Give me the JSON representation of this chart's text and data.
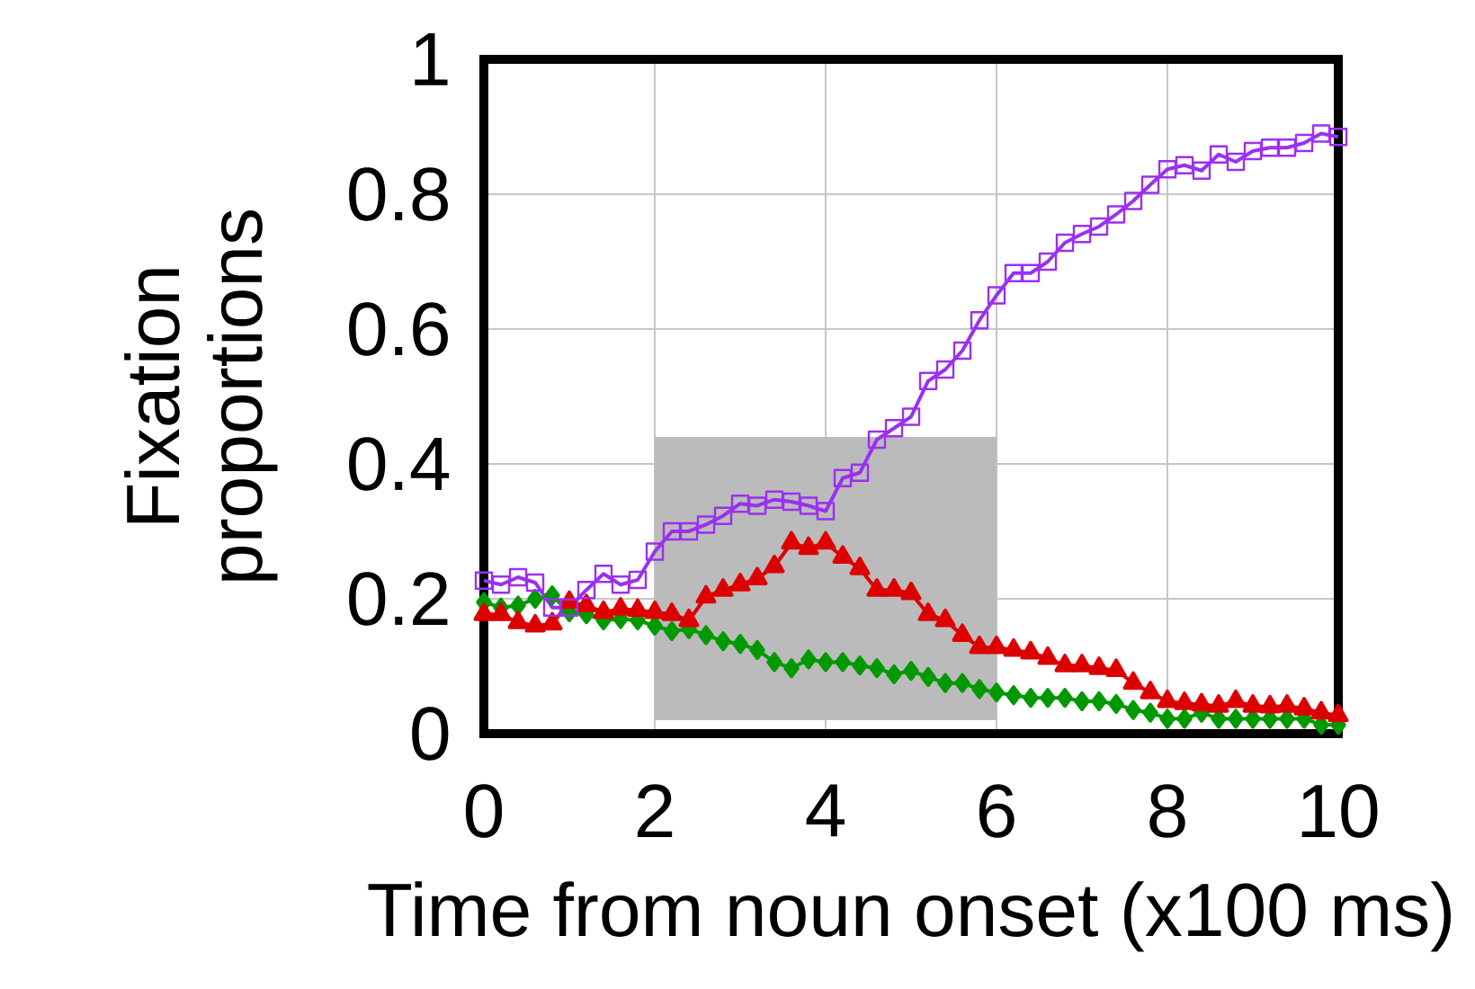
{
  "chart_data": {
    "type": "line",
    "xlabel": "Time from noun onset (x100 ms)",
    "ylabel": "Fixation proportions",
    "x": [
      0,
      0.2,
      0.4,
      0.6,
      0.8,
      1.0,
      1.2,
      1.4,
      1.6,
      1.8,
      2.0,
      2.2,
      2.4,
      2.6,
      2.8,
      3.0,
      3.2,
      3.4,
      3.6,
      3.8,
      4.0,
      4.2,
      4.4,
      4.6,
      4.8,
      5.0,
      5.2,
      5.4,
      5.6,
      5.8,
      6.0,
      6.2,
      6.4,
      6.6,
      6.8,
      7.0,
      7.2,
      7.4,
      7.6,
      7.8,
      8.0,
      8.2,
      8.4,
      8.6,
      8.8,
      9.0,
      9.2,
      9.4,
      9.6,
      9.8,
      10
    ],
    "series": [
      {
        "color": "#9b30f0",
        "marker": "square",
        "values": [
          0.227,
          0.221,
          0.232,
          0.224,
          0.187,
          0.187,
          0.213,
          0.237,
          0.221,
          0.228,
          0.27,
          0.3,
          0.3,
          0.31,
          0.323,
          0.341,
          0.338,
          0.347,
          0.344,
          0.338,
          0.33,
          0.379,
          0.387,
          0.436,
          0.453,
          0.47,
          0.523,
          0.54,
          0.568,
          0.613,
          0.65,
          0.683,
          0.683,
          0.7,
          0.728,
          0.741,
          0.752,
          0.77,
          0.79,
          0.814,
          0.837,
          0.843,
          0.835,
          0.859,
          0.848,
          0.864,
          0.869,
          0.869,
          0.876,
          0.89,
          0.885
        ]
      },
      {
        "color": "#dd0000",
        "marker": "triangle",
        "values": [
          0.177,
          0.177,
          0.165,
          0.16,
          0.163,
          0.195,
          0.19,
          0.18,
          0.185,
          0.183,
          0.18,
          0.177,
          0.168,
          0.203,
          0.213,
          0.221,
          0.23,
          0.248,
          0.283,
          0.275,
          0.283,
          0.262,
          0.245,
          0.213,
          0.213,
          0.208,
          0.177,
          0.168,
          0.146,
          0.128,
          0.128,
          0.124,
          0.12,
          0.112,
          0.101,
          0.101,
          0.097,
          0.094,
          0.075,
          0.061,
          0.048,
          0.045,
          0.043,
          0.041,
          0.048,
          0.041,
          0.04,
          0.041,
          0.037,
          0.031,
          0.027
        ]
      },
      {
        "color": "#009900",
        "marker": "diamond",
        "values": [
          0.195,
          0.187,
          0.19,
          0.2,
          0.205,
          0.18,
          0.177,
          0.168,
          0.17,
          0.168,
          0.16,
          0.152,
          0.155,
          0.146,
          0.137,
          0.133,
          0.124,
          0.106,
          0.097,
          0.11,
          0.106,
          0.106,
          0.101,
          0.097,
          0.088,
          0.093,
          0.084,
          0.075,
          0.075,
          0.066,
          0.061,
          0.057,
          0.053,
          0.053,
          0.053,
          0.048,
          0.048,
          0.044,
          0.035,
          0.031,
          0.022,
          0.022,
          0.031,
          0.022,
          0.022,
          0.022,
          0.022,
          0.022,
          0.022,
          0.013,
          0.013
        ]
      }
    ],
    "xlim": [
      0,
      10
    ],
    "ylim": [
      0,
      1
    ],
    "xticks": [
      0,
      2,
      4,
      6,
      8,
      10
    ],
    "yticks": [
      0,
      0.2,
      0.4,
      0.6,
      0.8,
      1
    ],
    "grid": true,
    "line_style": "solid",
    "bands": [
      {
        "axis": "x",
        "from": 2,
        "to": 6,
        "color": "#bbbbbb"
      }
    ]
  }
}
